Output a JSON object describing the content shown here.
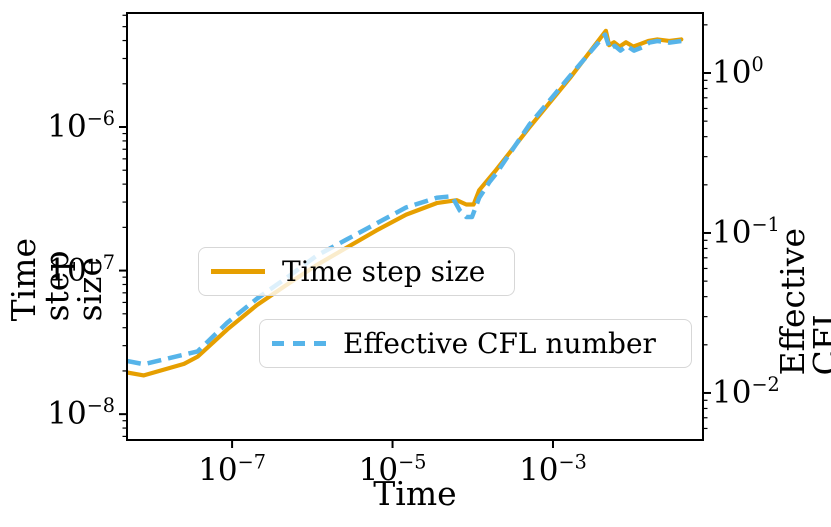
{
  "figure": {
    "background": "#ffffff",
    "spine_color": "#000000",
    "tick_color": "#000000"
  },
  "chart_data": {
    "type": "line",
    "title": "",
    "x_axis": {
      "label": "Time",
      "scale": "log",
      "log_range": [
        -8.31,
        -1.13
      ],
      "tick_label_base": "10",
      "ticks": [
        {
          "log": -7,
          "exponent": "−7"
        },
        {
          "log": -5,
          "exponent": "−5"
        },
        {
          "log": -3,
          "exponent": "−3"
        }
      ],
      "minor_ticks": false,
      "grid": false
    },
    "y_axis_left": {
      "label": "Time step size",
      "scale": "log",
      "log_range": [
        -8.18,
        -5.206
      ],
      "tick_label_base": "10",
      "ticks": [
        {
          "log": -8,
          "exponent": "−8"
        },
        {
          "log": -7,
          "exponent": "−7"
        },
        {
          "log": -6,
          "exponent": "−6"
        }
      ],
      "minor_ticks": true,
      "grid": false
    },
    "y_axis_right": {
      "label": "Effective CFL number",
      "scale": "log",
      "log_range": [
        -2.294,
        0.375
      ],
      "tick_label_base": "10",
      "ticks": [
        {
          "log": -2,
          "exponent": "−2"
        },
        {
          "log": -1,
          "exponent": "−1"
        },
        {
          "log": 0,
          "exponent": "0"
        }
      ],
      "minor_ticks": true,
      "grid": false
    },
    "legend": {
      "position": "center-left, two stacked boxes",
      "entries": [
        {
          "label": "Time step size",
          "color": "#E69F00",
          "line_style": "solid"
        },
        {
          "label": "Effective CFL number",
          "color": "#56B4E9",
          "line_style": "dashed"
        }
      ]
    },
    "series": [
      {
        "name": "Time step size",
        "axis": "left",
        "color": "#E69F00",
        "line_style": "solid",
        "line_width": 4.2,
        "points_log10": [
          [
            -8.31,
            -7.71
          ],
          [
            -8.1,
            -7.73
          ],
          [
            -7.85,
            -7.69
          ],
          [
            -7.6,
            -7.65
          ],
          [
            -7.43,
            -7.6
          ],
          [
            -7.06,
            -7.41
          ],
          [
            -6.69,
            -7.24
          ],
          [
            -6.32,
            -7.1
          ],
          [
            -5.94,
            -6.96
          ],
          [
            -5.57,
            -6.84
          ],
          [
            -5.2,
            -6.72
          ],
          [
            -4.83,
            -6.61
          ],
          [
            -4.45,
            -6.53
          ],
          [
            -4.2,
            -6.51
          ],
          [
            -4.08,
            -6.54
          ],
          [
            -3.99,
            -6.54
          ],
          [
            -3.92,
            -6.44
          ],
          [
            -3.71,
            -6.3
          ],
          [
            -3.29,
            -6.0
          ],
          [
            -2.79,
            -5.66
          ],
          [
            -2.34,
            -5.33
          ],
          [
            -2.3,
            -5.43
          ],
          [
            -2.24,
            -5.41
          ],
          [
            -2.17,
            -5.44
          ],
          [
            -2.09,
            -5.41
          ],
          [
            -2.0,
            -5.44
          ],
          [
            -1.9,
            -5.42
          ],
          [
            -1.81,
            -5.4
          ],
          [
            -1.7,
            -5.39
          ],
          [
            -1.55,
            -5.4
          ],
          [
            -1.4,
            -5.39
          ]
        ]
      },
      {
        "name": "Effective CFL number",
        "axis": "right",
        "color": "#56B4E9",
        "line_style": "dashed",
        "line_width": 4.5,
        "points_log10": [
          [
            -8.31,
            -1.8
          ],
          [
            -8.1,
            -1.82
          ],
          [
            -7.85,
            -1.79
          ],
          [
            -7.6,
            -1.76
          ],
          [
            -7.43,
            -1.74
          ],
          [
            -7.06,
            -1.56
          ],
          [
            -6.69,
            -1.41
          ],
          [
            -6.32,
            -1.28
          ],
          [
            -5.94,
            -1.14
          ],
          [
            -5.57,
            -1.04
          ],
          [
            -5.2,
            -0.94
          ],
          [
            -4.83,
            -0.84
          ],
          [
            -4.45,
            -0.78
          ],
          [
            -4.26,
            -0.77
          ],
          [
            -4.16,
            -0.86
          ],
          [
            -4.08,
            -0.9
          ],
          [
            -4.01,
            -0.9
          ],
          [
            -3.92,
            -0.78
          ],
          [
            -3.79,
            -0.68
          ],
          [
            -3.71,
            -0.63
          ],
          [
            -3.29,
            -0.32
          ],
          [
            -2.79,
            -0.02
          ],
          [
            -2.35,
            0.24
          ],
          [
            -2.29,
            0.15
          ],
          [
            -2.23,
            0.17
          ],
          [
            -2.16,
            0.14
          ],
          [
            -2.08,
            0.17
          ],
          [
            -1.99,
            0.14
          ],
          [
            -1.89,
            0.16
          ],
          [
            -1.8,
            0.19
          ],
          [
            -1.7,
            0.2
          ],
          [
            -1.55,
            0.19
          ],
          [
            -1.4,
            0.2
          ]
        ]
      }
    ]
  }
}
